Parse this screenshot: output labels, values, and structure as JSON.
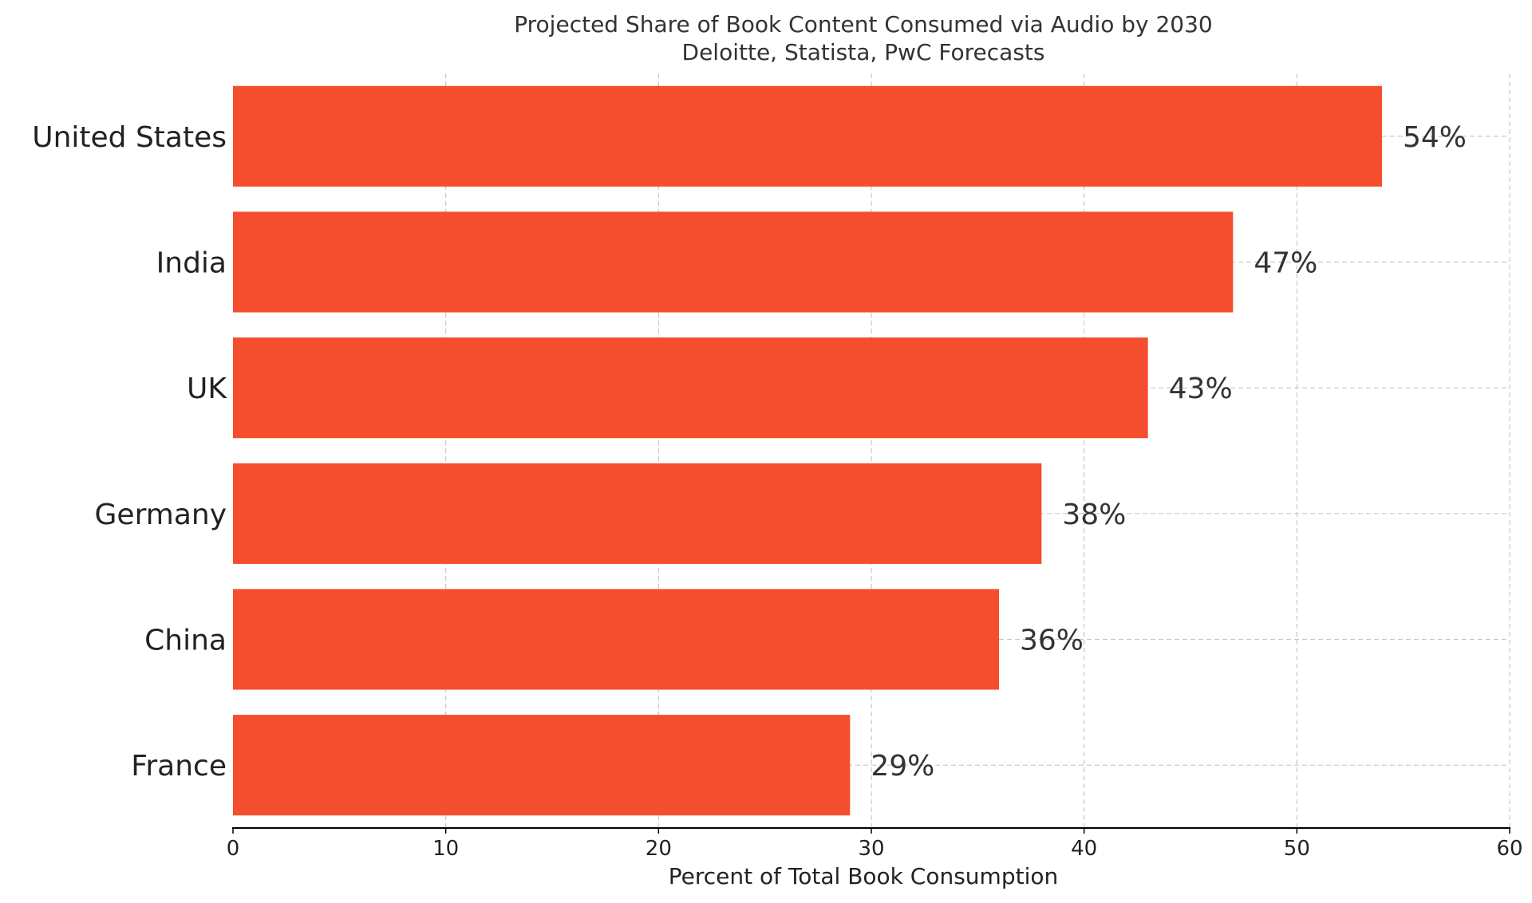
{
  "chart_data": {
    "type": "bar",
    "orientation": "horizontal",
    "title": "Projected Share of Book Content Consumed via Audio by 2030",
    "subtitle": "Deloitte, Statista, PwC Forecasts",
    "xlabel": "Percent of Total Book Consumption",
    "ylabel": "",
    "categories": [
      "United States",
      "India",
      "UK",
      "Germany",
      "China",
      "France"
    ],
    "values": [
      54,
      47,
      43,
      38,
      36,
      29
    ],
    "data_labels": [
      "54%",
      "47%",
      "43%",
      "38%",
      "36%",
      "29%"
    ],
    "xlim": [
      0,
      60
    ],
    "xticks": [
      0,
      10,
      20,
      30,
      40,
      50,
      60
    ],
    "xtick_labels": [
      "0",
      "10",
      "20",
      "30",
      "40",
      "50",
      "60"
    ],
    "grid": true,
    "legend": "none",
    "bar_color": "#f44e2e",
    "grid_color": "#c8c8c8",
    "text_color": "#333333"
  }
}
